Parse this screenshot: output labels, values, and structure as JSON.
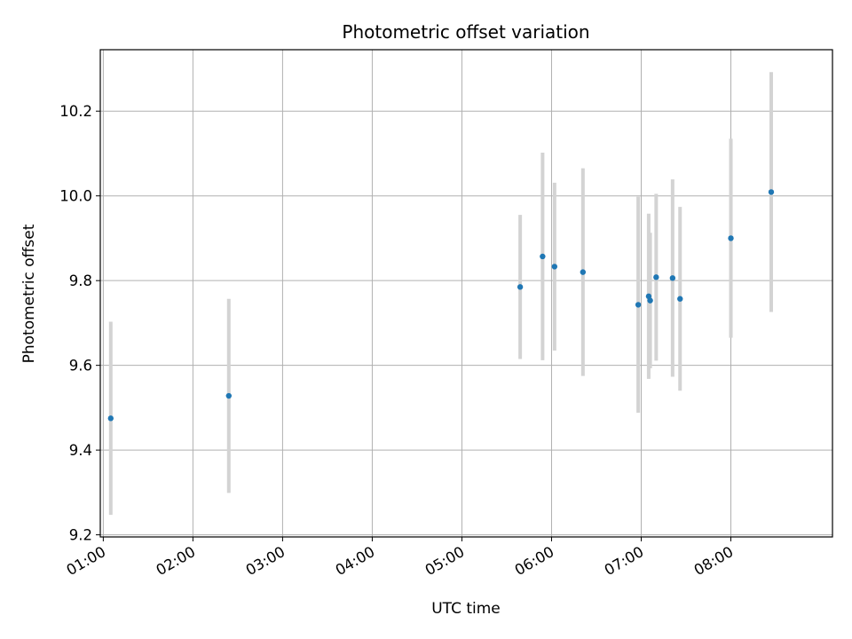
{
  "colors": {
    "marker": "#1f77b4",
    "errorbar": "#d3d3d3",
    "grid": "#b0b0b0",
    "axes": "#000000"
  },
  "chart_data": {
    "type": "scatter",
    "title": "Photometric offset variation",
    "xlabel": "UTC time",
    "ylabel": "Photometric offset",
    "grid": true,
    "x_tick_labels": [
      "01:00",
      "02:00",
      "03:00",
      "04:00",
      "05:00",
      "06:00",
      "07:00",
      "08:00"
    ],
    "y_tick_labels": [
      "9.2",
      "9.4",
      "9.6",
      "9.8",
      "10.0",
      "10.2"
    ],
    "y_ticks": [
      9.2,
      9.4,
      9.6,
      9.8,
      10.0,
      10.2
    ],
    "x_range": [
      "00:58",
      "09:08"
    ],
    "ylim": [
      9.195,
      10.345
    ],
    "points": [
      {
        "x": "01:05",
        "y": 9.475,
        "err": 0.228
      },
      {
        "x": "02:24",
        "y": 9.528,
        "err": 0.229
      },
      {
        "x": "05:39",
        "y": 9.785,
        "err": 0.17
      },
      {
        "x": "05:54",
        "y": 9.857,
        "err": 0.245
      },
      {
        "x": "06:02",
        "y": 9.833,
        "err": 0.198
      },
      {
        "x": "06:21",
        "y": 9.82,
        "err": 0.245
      },
      {
        "x": "06:58",
        "y": 9.743,
        "err": 0.255
      },
      {
        "x": "07:05",
        "y": 9.763,
        "err": 0.195
      },
      {
        "x": "07:06",
        "y": 9.753,
        "err": 0.16
      },
      {
        "x": "07:10",
        "y": 9.808,
        "err": 0.197
      },
      {
        "x": "07:21",
        "y": 9.806,
        "err": 0.233
      },
      {
        "x": "07:26",
        "y": 9.757,
        "err": 0.217
      },
      {
        "x": "08:00",
        "y": 9.9,
        "err": 0.235
      },
      {
        "x": "08:27",
        "y": 10.009,
        "err": 0.283
      }
    ]
  }
}
